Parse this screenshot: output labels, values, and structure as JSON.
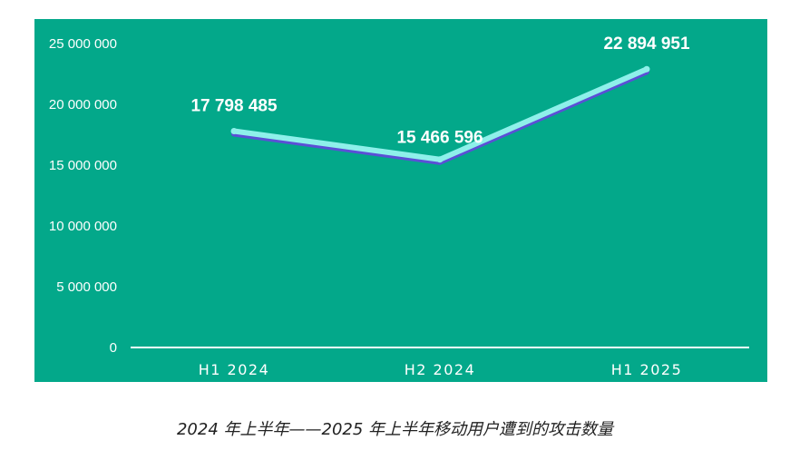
{
  "figure_caption": "2024 年上半年——2025 年上半年移动用户遭到的攻击数量",
  "colors": {
    "panel_background": "#03a88a",
    "line_main": "#8ef0ea",
    "line_shadow": "#5b4fd6",
    "text": "#ffffff",
    "caption_text": "#222222"
  },
  "chart_data": {
    "type": "line",
    "categories": [
      "H1 2024",
      "H2 2024",
      "H1 2025"
    ],
    "values": [
      17798485,
      15466596,
      22894951
    ],
    "data_labels": [
      "17 798 485",
      "15 466 596",
      "22 894 951"
    ],
    "ylim": [
      0,
      25000000
    ],
    "yticks": [
      0,
      5000000,
      10000000,
      15000000,
      20000000,
      25000000
    ],
    "ytick_labels": [
      "0",
      "5 000 000",
      "10 000 000",
      "15 000 000",
      "20 000 000",
      "25 000 000"
    ],
    "grid": false,
    "legend": "none"
  }
}
